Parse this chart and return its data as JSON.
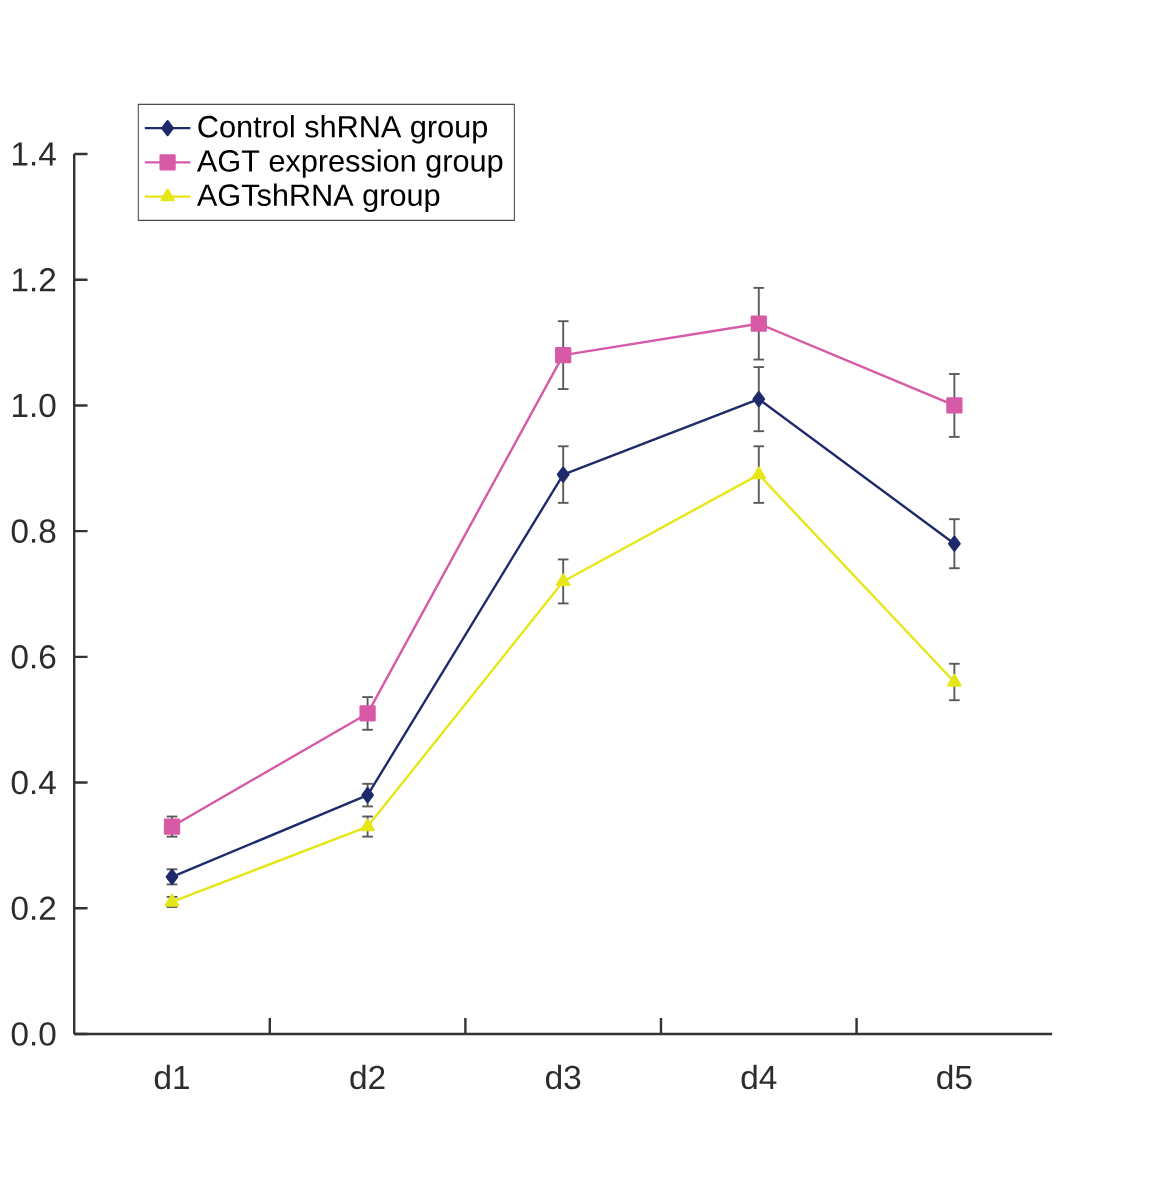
{
  "chart_data": {
    "type": "line",
    "categories": [
      "d1",
      "d2",
      "d3",
      "d4",
      "d5"
    ],
    "series": [
      {
        "name": "Control shRNA group",
        "color": "#1f2a6b",
        "marker": "diamond",
        "values": [
          0.25,
          0.38,
          0.89,
          1.01,
          0.78
        ],
        "errors": [
          0.012,
          0.018,
          0.045,
          0.051,
          0.039
        ]
      },
      {
        "name": "AGT expression group",
        "color": "#d65aa6",
        "marker": "square",
        "values": [
          0.33,
          0.51,
          1.08,
          1.13,
          1.0
        ],
        "errors": [
          0.016,
          0.026,
          0.054,
          0.057,
          0.05
        ]
      },
      {
        "name": "AGTshRNA group",
        "color": "#e6e619",
        "marker": "triangle",
        "values": [
          0.21,
          0.33,
          0.72,
          0.89,
          0.56
        ],
        "errors": [
          0.008,
          0.016,
          0.035,
          0.045,
          0.029
        ]
      }
    ],
    "ylim": [
      0.0,
      1.4
    ],
    "yticks": [
      {
        "value": 0.0,
        "label": "0.0"
      },
      {
        "value": 0.2,
        "label": "0.2"
      },
      {
        "value": 0.4,
        "label": "0.4"
      },
      {
        "value": 0.6,
        "label": "0.6"
      },
      {
        "value": 0.8,
        "label": "0.8"
      },
      {
        "value": 1.0,
        "label": "1.0"
      },
      {
        "value": 1.2,
        "label": "1.2"
      },
      {
        "value": 1.4,
        "label": "1.4"
      }
    ],
    "grid": false,
    "legend": "top left",
    "line_style": "solid"
  }
}
